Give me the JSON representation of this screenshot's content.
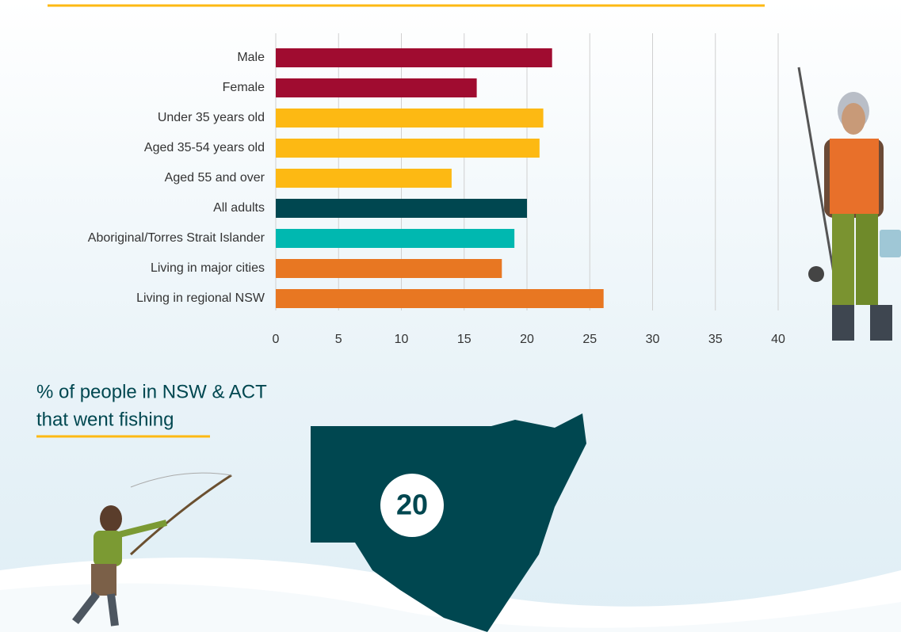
{
  "chart_data": {
    "type": "bar",
    "orientation": "horizontal",
    "categories": [
      "Male",
      "Female",
      "Under 35 years old",
      "Aged 35-54 years old",
      "Aged 55 and over",
      "All adults",
      "Aboriginal/Torres Strait Islander",
      "Living in major cities",
      "Living in regional NSW"
    ],
    "values": [
      22,
      16,
      21.3,
      21,
      14,
      20,
      19,
      18,
      26.1
    ],
    "colors": [
      "#a00c30",
      "#a00c30",
      "#fdb913",
      "#fdb913",
      "#fdb913",
      "#004750",
      "#00b8b0",
      "#e87722",
      "#e87722"
    ],
    "xlim": [
      0,
      40
    ],
    "xticks": [
      0,
      5,
      10,
      15,
      20,
      25,
      30,
      35,
      40
    ],
    "grid": true
  },
  "map": {
    "caption": [
      "% of people in NSW & ACT",
      "that went fishing"
    ],
    "value": 20
  }
}
